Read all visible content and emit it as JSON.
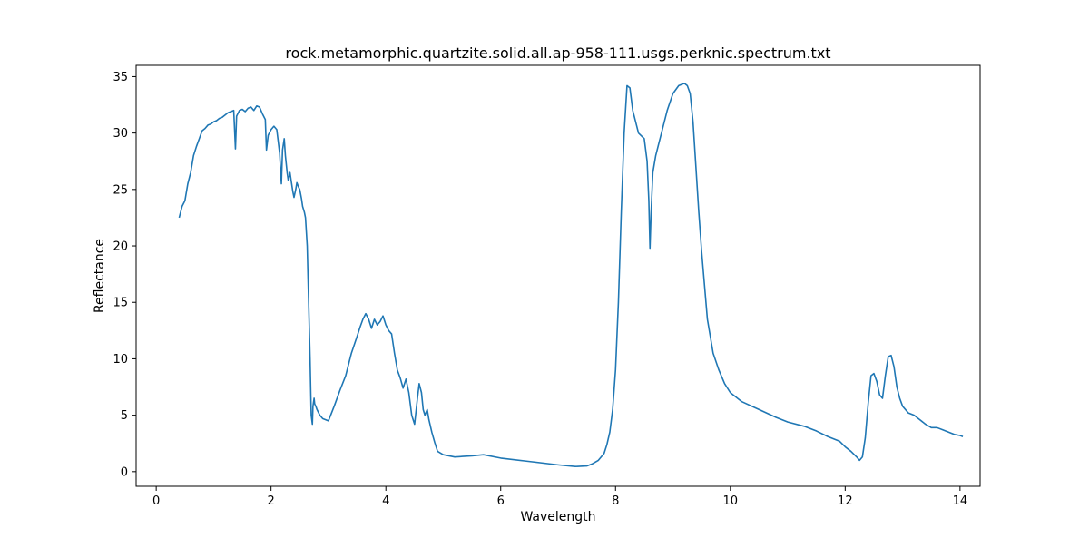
{
  "chart_data": {
    "type": "line",
    "title": "rock.metamorphic.quartzite.solid.all.ap-958-111.usgs.perknic.spectrum.txt",
    "xlabel": "Wavelength",
    "ylabel": "Reflectance",
    "xlim": [
      -0.35,
      14.35
    ],
    "ylim": [
      -1.3,
      36.0
    ],
    "xticks": [
      0,
      2,
      4,
      6,
      8,
      10,
      12,
      14
    ],
    "yticks": [
      0,
      5,
      10,
      15,
      20,
      25,
      30,
      35
    ],
    "grid": false,
    "legend": "none",
    "series": [
      {
        "color": "#1f77b4",
        "x": [
          0.4,
          0.45,
          0.5,
          0.55,
          0.6,
          0.65,
          0.7,
          0.75,
          0.8,
          0.85,
          0.9,
          0.95,
          1.0,
          1.05,
          1.1,
          1.15,
          1.2,
          1.25,
          1.3,
          1.35,
          1.38,
          1.4,
          1.45,
          1.5,
          1.55,
          1.6,
          1.65,
          1.7,
          1.75,
          1.8,
          1.85,
          1.9,
          1.92,
          1.95,
          2.0,
          2.05,
          2.1,
          2.15,
          2.18,
          2.2,
          2.23,
          2.25,
          2.28,
          2.3,
          2.33,
          2.35,
          2.38,
          2.4,
          2.43,
          2.45,
          2.48,
          2.5,
          2.53,
          2.55,
          2.58,
          2.6,
          2.63,
          2.65,
          2.68,
          2.7,
          2.72,
          2.73,
          2.75,
          2.76,
          2.78,
          2.8,
          2.85,
          2.9,
          2.95,
          3.0,
          3.1,
          3.2,
          3.3,
          3.4,
          3.5,
          3.55,
          3.6,
          3.65,
          3.7,
          3.75,
          3.8,
          3.85,
          3.9,
          3.95,
          4.0,
          4.05,
          4.1,
          4.15,
          4.2,
          4.25,
          4.3,
          4.35,
          4.4,
          4.45,
          4.5,
          4.55,
          4.58,
          4.62,
          4.65,
          4.68,
          4.72,
          4.75,
          4.8,
          4.85,
          4.9,
          5.0,
          5.2,
          5.5,
          5.7,
          6.0,
          6.5,
          7.0,
          7.3,
          7.5,
          7.6,
          7.7,
          7.8,
          7.85,
          7.9,
          7.95,
          8.0,
          8.05,
          8.1,
          8.15,
          8.2,
          8.25,
          8.3,
          8.4,
          8.5,
          8.55,
          8.58,
          8.6,
          8.62,
          8.65,
          8.7,
          8.75,
          8.8,
          8.9,
          9.0,
          9.1,
          9.2,
          9.25,
          9.3,
          9.35,
          9.4,
          9.45,
          9.5,
          9.6,
          9.7,
          9.8,
          9.9,
          10.0,
          10.2,
          10.5,
          10.8,
          11.0,
          11.3,
          11.5,
          11.7,
          11.9,
          12.0,
          12.1,
          12.2,
          12.25,
          12.3,
          12.35,
          12.4,
          12.45,
          12.5,
          12.55,
          12.6,
          12.65,
          12.7,
          12.75,
          12.8,
          12.85,
          12.9,
          12.95,
          13.0,
          13.1,
          13.2,
          13.3,
          13.4,
          13.5,
          13.6,
          13.7,
          13.8,
          13.9,
          14.0,
          14.05
        ],
        "y": [
          22.5,
          23.5,
          24.0,
          25.5,
          26.5,
          28.0,
          28.8,
          29.5,
          30.2,
          30.4,
          30.7,
          30.8,
          31.0,
          31.1,
          31.3,
          31.4,
          31.6,
          31.8,
          31.9,
          32.0,
          28.6,
          31.5,
          32.0,
          32.1,
          31.9,
          32.2,
          32.3,
          32.0,
          32.4,
          32.3,
          31.7,
          31.2,
          28.5,
          29.8,
          30.3,
          30.6,
          30.3,
          28.2,
          25.5,
          28.5,
          29.5,
          28.0,
          26.5,
          25.8,
          26.5,
          25.8,
          24.8,
          24.3,
          25.0,
          25.6,
          25.2,
          25.0,
          24.2,
          23.5,
          23.0,
          22.5,
          20.0,
          16.0,
          10.0,
          5.0,
          4.2,
          5.8,
          6.5,
          6.0,
          5.8,
          5.5,
          5.0,
          4.7,
          4.6,
          4.5,
          5.8,
          7.2,
          8.5,
          10.5,
          12.0,
          12.8,
          13.5,
          14.0,
          13.5,
          12.7,
          13.5,
          13.0,
          13.3,
          13.8,
          13.0,
          12.5,
          12.2,
          10.5,
          9.0,
          8.3,
          7.4,
          8.2,
          7.0,
          5.0,
          4.2,
          6.5,
          7.8,
          7.0,
          5.5,
          5.0,
          5.5,
          4.6,
          3.5,
          2.6,
          1.8,
          1.5,
          1.3,
          1.4,
          1.5,
          1.2,
          0.9,
          0.6,
          0.45,
          0.5,
          0.7,
          1.0,
          1.6,
          2.4,
          3.5,
          5.5,
          9.0,
          15.0,
          23.0,
          30.0,
          34.2,
          34.0,
          32.0,
          30.0,
          29.5,
          27.5,
          24.0,
          19.8,
          23.0,
          26.5,
          28.0,
          29.0,
          30.0,
          32.0,
          33.5,
          34.2,
          34.4,
          34.2,
          33.5,
          31.0,
          27.0,
          23.0,
          19.5,
          13.5,
          10.5,
          9.0,
          7.8,
          7.0,
          6.2,
          5.5,
          4.8,
          4.4,
          4.0,
          3.6,
          3.1,
          2.7,
          2.2,
          1.8,
          1.3,
          1.0,
          1.3,
          3.0,
          6.0,
          8.5,
          8.7,
          8.0,
          6.8,
          6.5,
          8.5,
          10.2,
          10.3,
          9.3,
          7.5,
          6.5,
          5.8,
          5.2,
          5.0,
          4.6,
          4.2,
          3.9,
          3.9,
          3.7,
          3.5,
          3.3,
          3.2,
          3.1
        ]
      }
    ]
  }
}
